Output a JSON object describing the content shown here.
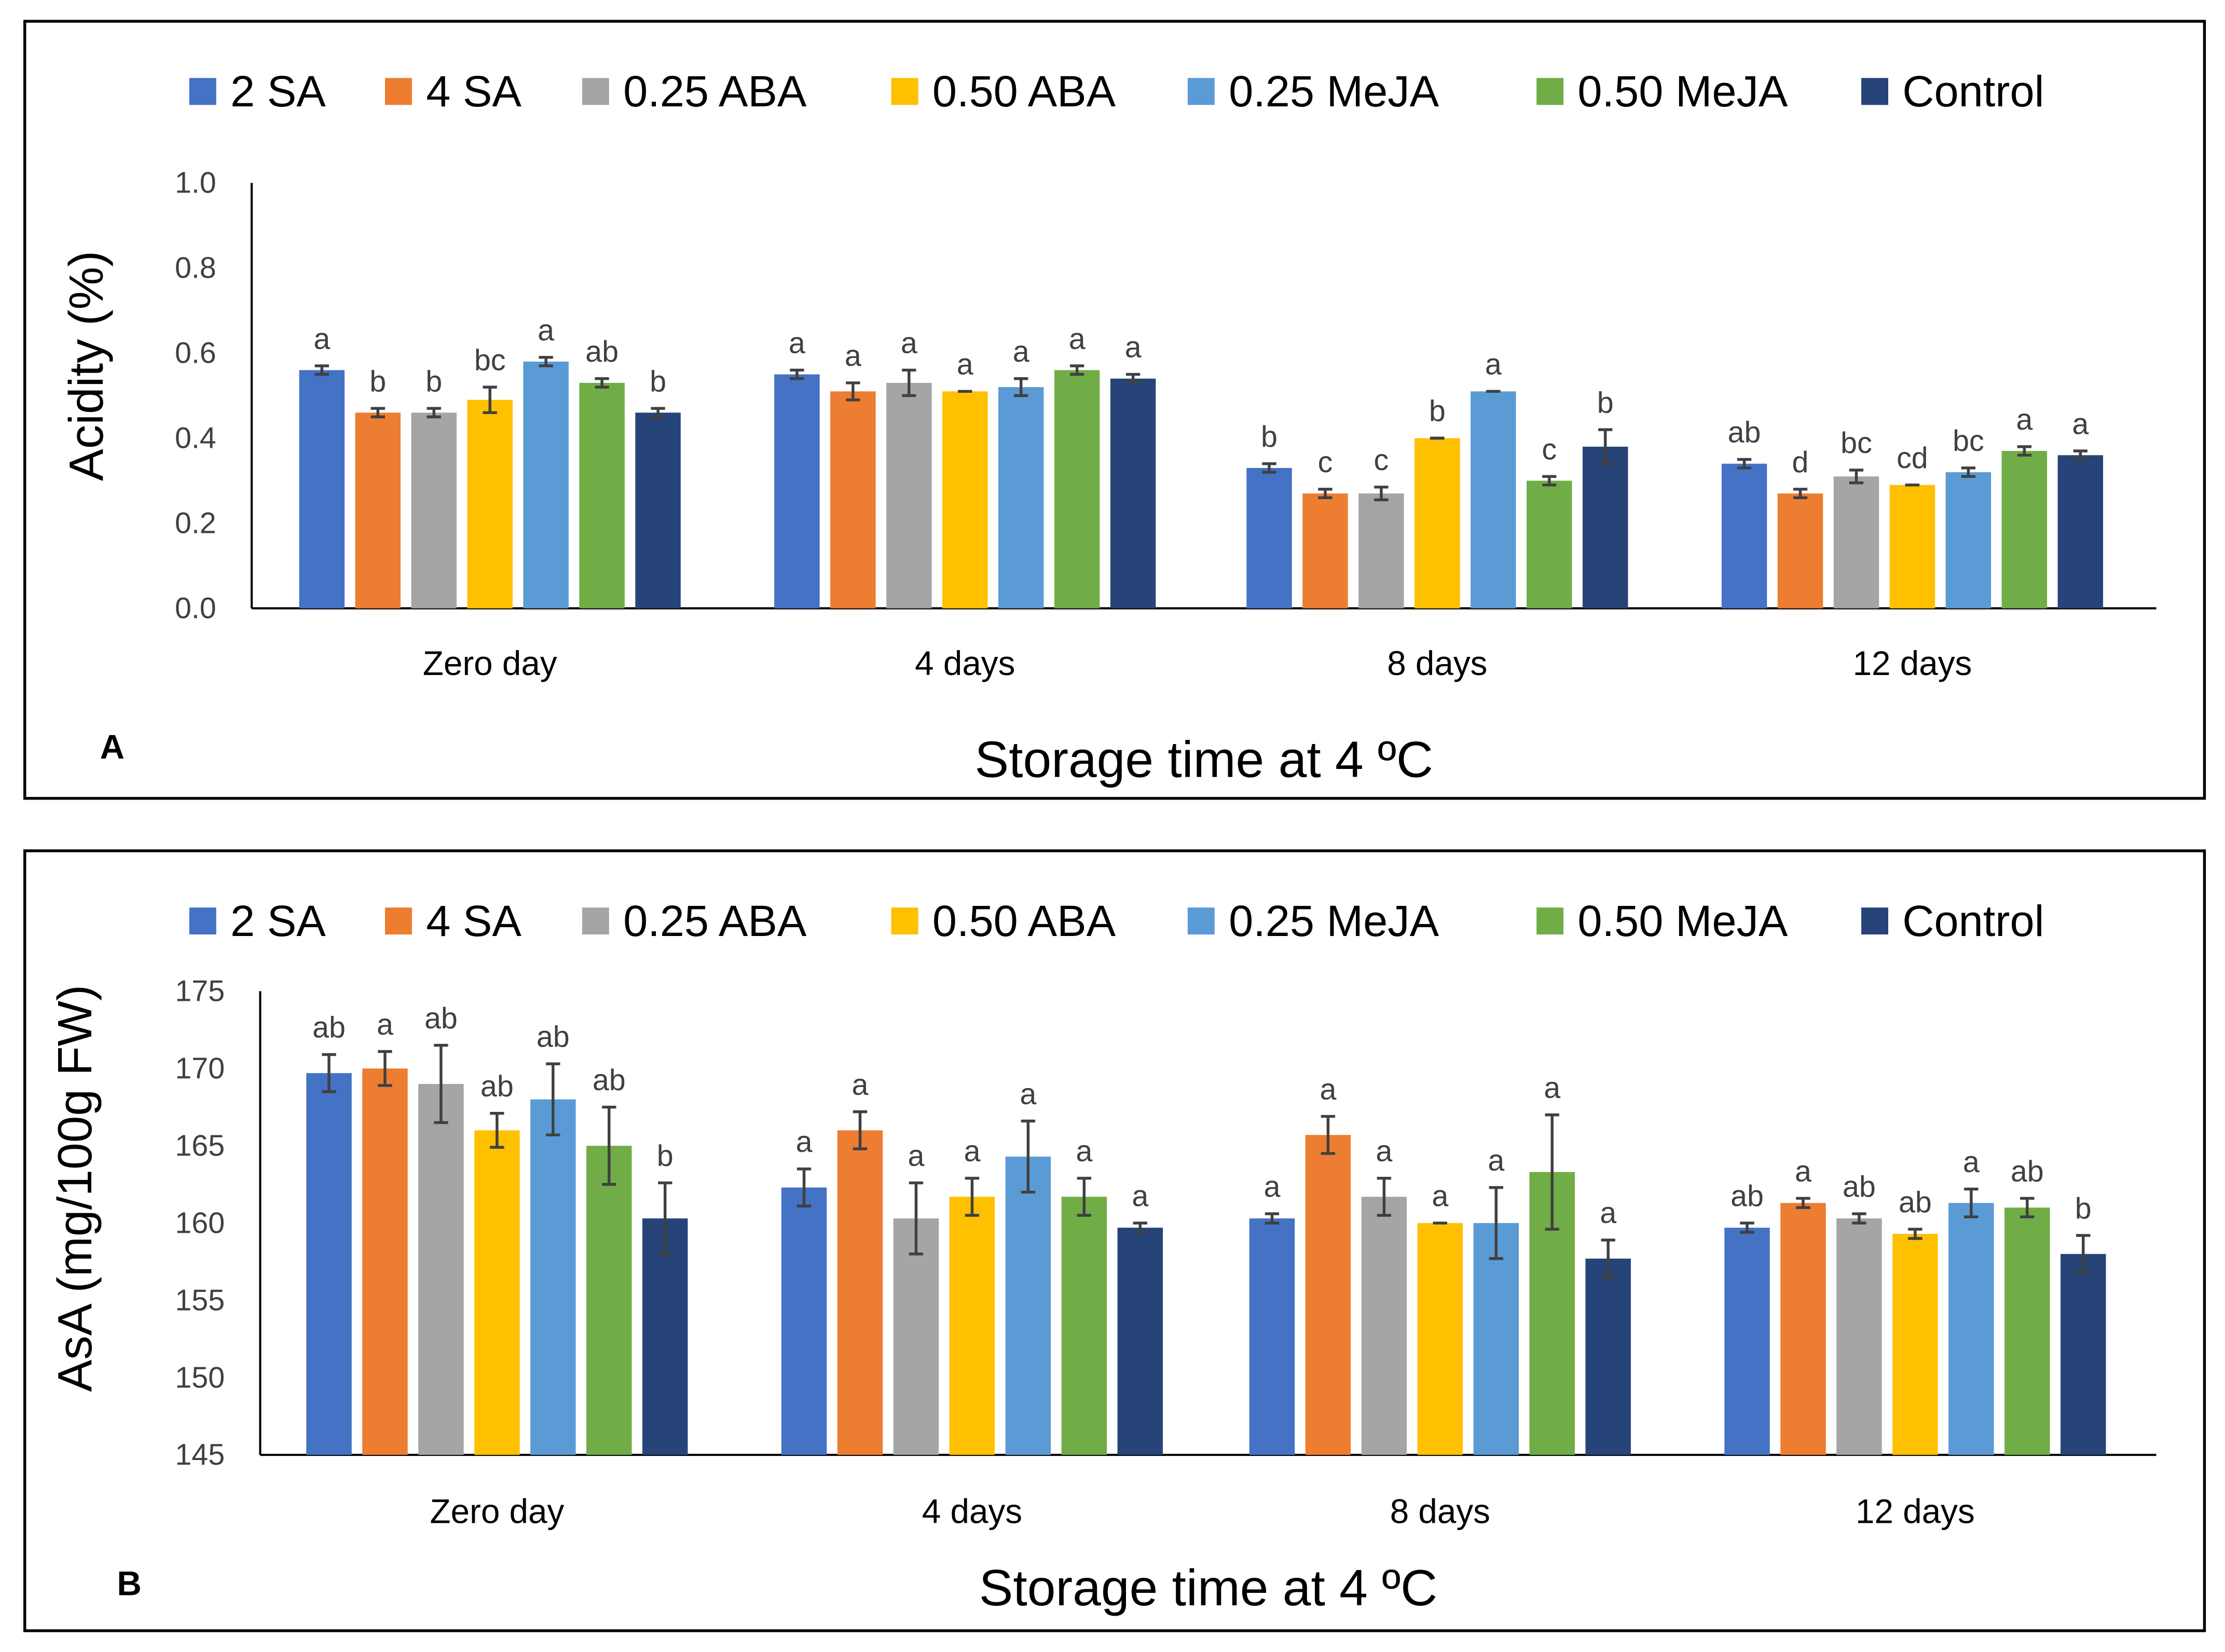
{
  "colors": {
    "2 SA": "#4472C4",
    "4 SA": "#ED7D31",
    "0.25 ABA": "#A5A5A5",
    "0.50 ABA": "#FFC000",
    "0.25 MeJA": "#5B9BD5",
    "0.50 MeJA": "#70AD47",
    "Control": "#264478"
  },
  "chart_data": [
    {
      "type": "bar",
      "panel_label": "A",
      "xlabel": "Storage time at 4 ºC",
      "ylabel": "Acidity (%)",
      "ylim": [
        0,
        1.0
      ],
      "yticks": [
        "0.0",
        "0.2",
        "0.4",
        "0.6",
        "0.8",
        "1.0"
      ],
      "legend": "top",
      "categories": [
        "Zero day",
        "4 days",
        "8 days",
        "12 days"
      ],
      "series": [
        {
          "name": "2 SA",
          "values": [
            0.56,
            0.55,
            0.33,
            0.34
          ],
          "errors": [
            0.01,
            0.01,
            0.01,
            0.01
          ],
          "letters": [
            "a",
            "a",
            "b",
            "ab"
          ]
        },
        {
          "name": "4 SA",
          "values": [
            0.46,
            0.51,
            0.27,
            0.27
          ],
          "errors": [
            0.01,
            0.02,
            0.01,
            0.01
          ],
          "letters": [
            "b",
            "a",
            "c",
            "d"
          ]
        },
        {
          "name": "0.25 ABA",
          "values": [
            0.46,
            0.53,
            0.27,
            0.31
          ],
          "errors": [
            0.01,
            0.03,
            0.015,
            0.015
          ],
          "letters": [
            "b",
            "a",
            "c",
            "bc"
          ]
        },
        {
          "name": "0.50 ABA",
          "values": [
            0.49,
            0.51,
            0.4,
            0.29
          ],
          "errors": [
            0.03,
            0.0,
            0.0,
            0.0
          ],
          "letters": [
            "bc",
            "a",
            "b",
            "cd"
          ]
        },
        {
          "name": "0.25 MeJA",
          "values": [
            0.58,
            0.52,
            0.51,
            0.32
          ],
          "errors": [
            0.01,
            0.02,
            0.0,
            0.01
          ],
          "letters": [
            "a",
            "a",
            "a",
            "bc"
          ]
        },
        {
          "name": "0.50 MeJA",
          "values": [
            0.53,
            0.56,
            0.3,
            0.37
          ],
          "errors": [
            0.01,
            0.01,
            0.01,
            0.01
          ],
          "letters": [
            "ab",
            "a",
            "c",
            "a"
          ]
        },
        {
          "name": "Control",
          "values": [
            0.46,
            0.54,
            0.38,
            0.36
          ],
          "errors": [
            0.01,
            0.01,
            0.04,
            0.01
          ],
          "letters": [
            "b",
            "a",
            "b",
            "a"
          ]
        }
      ]
    },
    {
      "type": "bar",
      "panel_label": "B",
      "xlabel": "Storage time at 4 ºC",
      "ylabel": "AsA (mg/100g FW)",
      "ylim": [
        145,
        175
      ],
      "yticks": [
        "145",
        "150",
        "155",
        "160",
        "165",
        "170",
        "175"
      ],
      "legend": "top",
      "categories": [
        "Zero day",
        "4 days",
        "8 days",
        "12 days"
      ],
      "series": [
        {
          "name": "2 SA",
          "values": [
            169.7,
            162.3,
            160.3,
            159.7
          ],
          "errors": [
            1.2,
            1.2,
            0.3,
            0.3
          ],
          "letters": [
            "ab",
            "a",
            "a",
            "ab"
          ]
        },
        {
          "name": "4 SA",
          "values": [
            170.0,
            166.0,
            165.7,
            161.3
          ],
          "errors": [
            1.1,
            1.2,
            1.2,
            0.3
          ],
          "letters": [
            "a",
            "a",
            "a",
            "a"
          ]
        },
        {
          "name": "0.25 ABA",
          "values": [
            169.0,
            160.3,
            161.7,
            160.3
          ],
          "errors": [
            2.5,
            2.3,
            1.2,
            0.3
          ],
          "letters": [
            "ab",
            "a",
            "a",
            "ab"
          ]
        },
        {
          "name": "0.50 ABA",
          "values": [
            166.0,
            161.7,
            160.0,
            159.3
          ],
          "errors": [
            1.1,
            1.2,
            0.0,
            0.3
          ],
          "letters": [
            "ab",
            "a",
            "a",
            "ab"
          ]
        },
        {
          "name": "0.25 MeJA",
          "values": [
            168.0,
            164.3,
            160.0,
            161.3
          ],
          "errors": [
            2.3,
            2.3,
            2.3,
            0.9
          ],
          "letters": [
            "ab",
            "a",
            "a",
            "a"
          ]
        },
        {
          "name": "0.50 MeJA",
          "values": [
            165.0,
            161.7,
            163.3,
            161.0
          ],
          "errors": [
            2.5,
            1.2,
            3.7,
            0.6
          ],
          "letters": [
            "ab",
            "a",
            "a",
            "ab"
          ]
        },
        {
          "name": "Control",
          "values": [
            160.3,
            159.7,
            157.7,
            158.0
          ],
          "errors": [
            2.3,
            0.3,
            1.2,
            1.2
          ],
          "letters": [
            "b",
            "a",
            "a",
            "b"
          ]
        }
      ]
    }
  ]
}
